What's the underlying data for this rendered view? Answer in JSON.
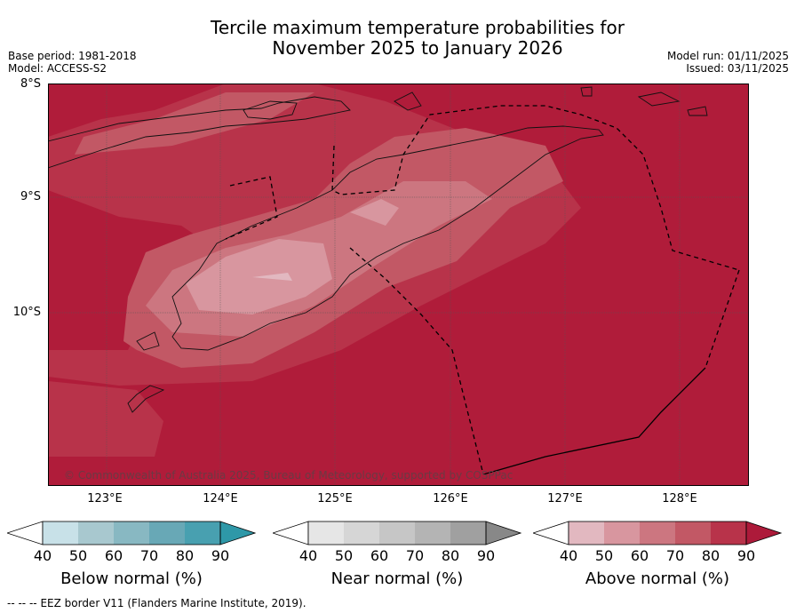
{
  "header": {
    "title_line1": "Tercile maximum temperature probabilities for",
    "title_line2": "November 2025 to January 2026",
    "base_period": "Base period: 1981-2018",
    "model": "Model: ACCESS-S2",
    "model_run": "Model run: 01/11/2025",
    "issued": "Issued: 03/11/2025"
  },
  "map": {
    "lat_labels": [
      "8°S",
      "9°S",
      "10°S"
    ],
    "lon_labels": [
      "123°E",
      "124°E",
      "125°E",
      "126°E",
      "127°E",
      "128°E"
    ],
    "copyright": "© Commonwealth of Australia 2025, Bureau of Meteorology, supported by COSPPac"
  },
  "colorbars": [
    {
      "label": "Below normal (%)",
      "ticks": [
        "40",
        "50",
        "60",
        "70",
        "80",
        "90"
      ],
      "colors": [
        "#c8e1e8",
        "#a8c8cf",
        "#88b8c2",
        "#68a8b6",
        "#48a0b0",
        "#2e98a8"
      ]
    },
    {
      "label": "Near normal (%)",
      "ticks": [
        "40",
        "50",
        "60",
        "70",
        "80",
        "90"
      ],
      "colors": [
        "#e6e6e6",
        "#d6d6d6",
        "#c6c6c6",
        "#b4b4b4",
        "#a0a0a0",
        "#888888"
      ]
    },
    {
      "label": "Above normal (%)",
      "ticks": [
        "40",
        "50",
        "60",
        "70",
        "80",
        "90"
      ],
      "colors": [
        "#e2b8c0",
        "#d8969f",
        "#cc7680",
        "#c25865",
        "#b8334a",
        "#ad1a3a"
      ]
    }
  ],
  "footer": {
    "legend_symbol": "--  --  --",
    "legend_text": "EEZ border V11 (Flanders Marine Institute, 2019)."
  },
  "colors": {
    "level_90": "#b01c3a",
    "level_80": "#b8334a",
    "level_70": "#c25865",
    "level_60": "#cc7680",
    "level_50": "#d8969f"
  }
}
